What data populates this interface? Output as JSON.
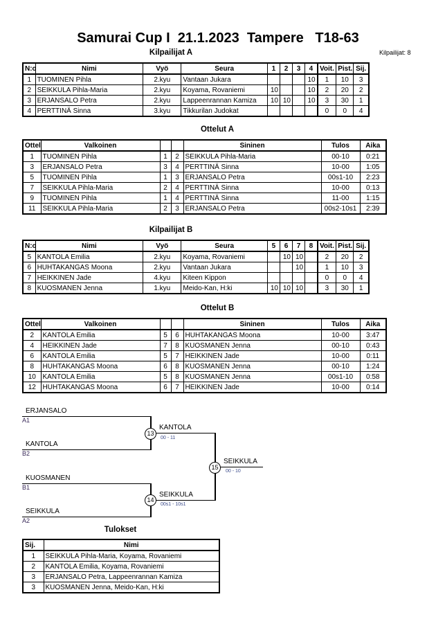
{
  "title": "Samurai Cup I  21.1.2023  Tampere   T18-63",
  "competitor_count": "Kilpailijat: 8",
  "pool_a": {
    "heading": "Kilpailijat A",
    "headers": [
      "N:o",
      "Nimi",
      "Vyö",
      "Seura",
      "1",
      "2",
      "3",
      "4",
      "Voit.",
      "Pist.",
      "Sij."
    ],
    "rows": [
      [
        "1",
        "TUOMINEN Pihla",
        "2.kyu",
        "Vantaan Jukara",
        "",
        "",
        "",
        "10",
        "1",
        "10",
        "3"
      ],
      [
        "2",
        "SEIKKULA Pihla-Maria",
        "2.kyu",
        "Koyama, Rovaniemi",
        "10",
        "",
        "",
        "10",
        "2",
        "20",
        "2"
      ],
      [
        "3",
        "ERJANSALO Petra",
        "2.kyu",
        "Lappeenrannan Kamiza",
        "10",
        "10",
        "",
        "10",
        "3",
        "30",
        "1"
      ],
      [
        "4",
        "PERTTINÄ Sinna",
        "3.kyu",
        "Tikkurilan Judokat",
        "",
        "",
        "",
        "",
        "0",
        "0",
        "4"
      ]
    ]
  },
  "matches_a": {
    "heading": "Ottelut A",
    "headers": [
      "Ottelu",
      "Valkoinen",
      "",
      "",
      "Sininen",
      "Tulos",
      "Aika"
    ],
    "rows": [
      [
        "1",
        "TUOMINEN Pihla",
        "1",
        "2",
        "SEIKKULA Pihla-Maria",
        "00-10",
        "0:21"
      ],
      [
        "3",
        "ERJANSALO Petra",
        "3",
        "4",
        "PERTTINÄ Sinna",
        "10-00",
        "1:05"
      ],
      [
        "5",
        "TUOMINEN Pihla",
        "1",
        "3",
        "ERJANSALO Petra",
        "00s1-10",
        "2:23"
      ],
      [
        "7",
        "SEIKKULA Pihla-Maria",
        "2",
        "4",
        "PERTTINÄ Sinna",
        "10-00",
        "0:13"
      ],
      [
        "9",
        "TUOMINEN Pihla",
        "1",
        "4",
        "PERTTINÄ Sinna",
        "11-00",
        "1:15"
      ],
      [
        "11",
        "SEIKKULA Pihla-Maria",
        "2",
        "3",
        "ERJANSALO Petra",
        "00s2-10s1",
        "2:39"
      ]
    ]
  },
  "pool_b": {
    "heading": "Kilpailijat B",
    "headers": [
      "N:o",
      "Nimi",
      "Vyö",
      "Seura",
      "5",
      "6",
      "7",
      "8",
      "Voit.",
      "Pist.",
      "Sij."
    ],
    "rows": [
      [
        "5",
        "KANTOLA Emilia",
        "2.kyu",
        "Koyama, Rovaniemi",
        "",
        "10",
        "10",
        "",
        "2",
        "20",
        "2"
      ],
      [
        "6",
        "HUHTAKANGAS Moona",
        "2.kyu",
        "Vantaan Jukara",
        "",
        "",
        "10",
        "",
        "1",
        "10",
        "3"
      ],
      [
        "7",
        "HEIKKINEN Jade",
        "4.kyu",
        "Kiteen Kippon",
        "",
        "",
        "",
        "",
        "0",
        "0",
        "4"
      ],
      [
        "8",
        "KUOSMANEN Jenna",
        "1.kyu",
        "Meido-Kan, H:ki",
        "10",
        "10",
        "10",
        "",
        "3",
        "30",
        "1"
      ]
    ]
  },
  "matches_b": {
    "heading": "Ottelut B",
    "headers": [
      "Ottelu",
      "Valkoinen",
      "",
      "",
      "Sininen",
      "Tulos",
      "Aika"
    ],
    "rows": [
      [
        "2",
        "KANTOLA Emilia",
        "5",
        "6",
        "HUHTAKANGAS Moona",
        "10-00",
        "3:47"
      ],
      [
        "4",
        "HEIKKINEN Jade",
        "7",
        "8",
        "KUOSMANEN Jenna",
        "00-10",
        "0:43"
      ],
      [
        "6",
        "KANTOLA Emilia",
        "5",
        "7",
        "HEIKKINEN Jade",
        "10-00",
        "0:11"
      ],
      [
        "8",
        "HUHTAKANGAS Moona",
        "6",
        "8",
        "KUOSMANEN Jenna",
        "00-10",
        "1:24"
      ],
      [
        "10",
        "KANTOLA Emilia",
        "5",
        "8",
        "KUOSMANEN Jenna",
        "00s1-10",
        "0:58"
      ],
      [
        "12",
        "HUHTAKANGAS Moona",
        "6",
        "7",
        "HEIKKINEN Jade",
        "10-00",
        "0:14"
      ]
    ]
  },
  "bracket": {
    "p1": {
      "name": "ERJANSALO",
      "seed": "A1"
    },
    "p2": {
      "name": "KANTOLA",
      "seed": "B2"
    },
    "p3": {
      "name": "KUOSMANEN",
      "seed": "B1"
    },
    "p4": {
      "name": "SEIKKULA",
      "seed": "A2"
    },
    "m13": {
      "num": "13",
      "winner": "KANTOLA",
      "score": "00 - 11"
    },
    "m14": {
      "num": "14",
      "winner": "SEIKKULA",
      "score": "00s1 - 10s1"
    },
    "m15": {
      "num": "15",
      "winner": "SEIKKULA",
      "score": "00 - 10"
    }
  },
  "results": {
    "heading": "Tulokset",
    "headers": [
      "Sij.",
      "Nimi"
    ],
    "rows": [
      [
        "1",
        "SEIKKULA Pihla-Maria, Koyama, Rovaniemi"
      ],
      [
        "2",
        "KANTOLA Emilia, Koyama, Rovaniemi"
      ],
      [
        "3",
        "ERJANSALO Petra, Lappeenrannan Kamiza"
      ],
      [
        "3",
        "KUOSMANEN Jenna, Meido-Kan, H:ki"
      ]
    ]
  }
}
